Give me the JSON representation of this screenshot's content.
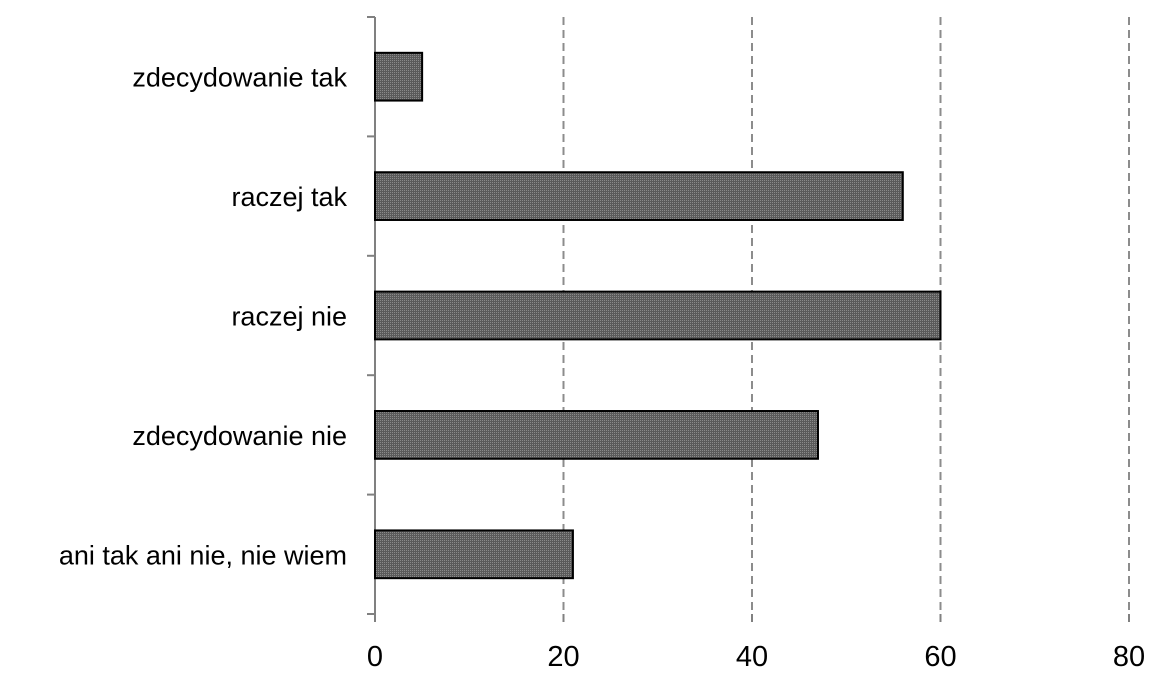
{
  "chart_data": {
    "type": "bar",
    "orientation": "horizontal",
    "categories": [
      "zdecydowanie tak",
      "raczej tak",
      "raczej nie",
      "zdecydowanie nie",
      "ani tak ani nie, nie wiem"
    ],
    "values": [
      5,
      56,
      60,
      47,
      21
    ],
    "xlim": [
      0,
      80
    ],
    "xticks": [
      "0",
      "20",
      "40",
      "60",
      "80"
    ],
    "grid": "vertical dashed",
    "legend": "none",
    "title": "",
    "xlabel": "",
    "ylabel": "",
    "colors": {
      "bar_fill": "#6b6b6b",
      "bar_stroke": "#000000",
      "grid": "#8c8c8c",
      "axis": "#808080"
    }
  }
}
